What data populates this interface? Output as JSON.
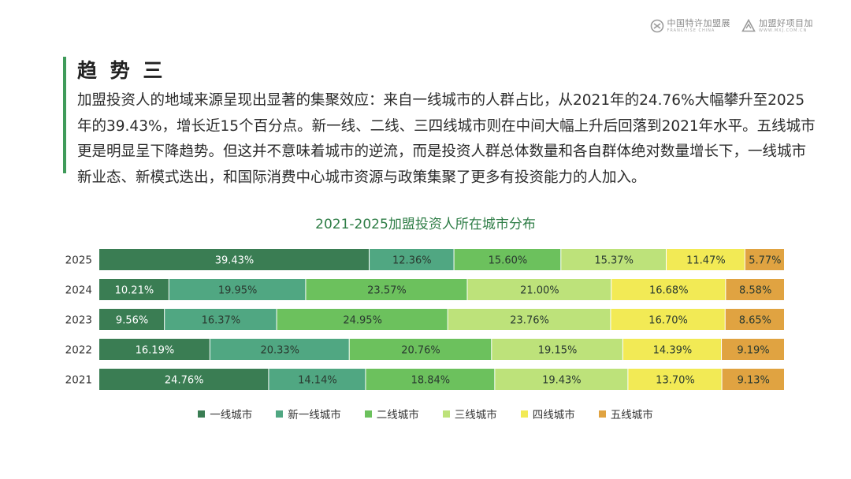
{
  "header": {
    "logo1_cn": "中国特许加盟展",
    "logo1_en": "FRANCHISE CHINA",
    "logo2_cn": "加盟好项目加",
    "logo2_en": "WWW.MXJ.COM.CN"
  },
  "section": {
    "title": "趋 势 三",
    "paragraph": "加盟投资人的地域来源呈现出显著的集聚效应：来自一线城市的人群占比，从2021年的24.76%大幅攀升至2025年的39.43%，增长近15个百分点。新一线、二线、三四线城市则在中间大幅上升后回落到2021年水平。五线城市更是明显呈下降趋势。但这并不意味着城市的逆流，而是投资人群总体数量和各自群体绝对数量增长下，一线城市新业态、新模式迭出，和国际消费中心城市资源与政策集聚了更多有投资能力的人加入。"
  },
  "chart_data": {
    "type": "bar",
    "orientation": "horizontal",
    "stacked": true,
    "title": "2021-2025加盟投资人所在城市分布",
    "categories": [
      "2025",
      "2024",
      "2023",
      "2022",
      "2021"
    ],
    "series": [
      {
        "name": "一线城市",
        "color": "#3a7d53",
        "label_color": "#ffffff",
        "values": [
          39.43,
          10.21,
          9.56,
          16.19,
          24.76
        ]
      },
      {
        "name": "新一线城市",
        "color": "#50a782",
        "label_color": "#2a3a30",
        "values": [
          12.36,
          19.95,
          16.37,
          20.33,
          14.14
        ]
      },
      {
        "name": "二线城市",
        "color": "#6cc15d",
        "label_color": "#2a3a30",
        "values": [
          15.6,
          23.57,
          24.95,
          20.76,
          18.84
        ]
      },
      {
        "name": "三线城市",
        "color": "#bde27a",
        "label_color": "#2a3a30",
        "values": [
          15.37,
          21.0,
          23.76,
          19.15,
          19.43
        ]
      },
      {
        "name": "四线城市",
        "color": "#f2ea55",
        "label_color": "#2a3a30",
        "values": [
          11.47,
          16.68,
          16.7,
          14.39,
          13.7
        ]
      },
      {
        "name": "五线城市",
        "color": "#e0a341",
        "label_color": "#2a3a30",
        "values": [
          5.77,
          8.58,
          8.65,
          9.19,
          9.13
        ]
      }
    ],
    "value_suffix": "%",
    "legend_position": "bottom"
  }
}
